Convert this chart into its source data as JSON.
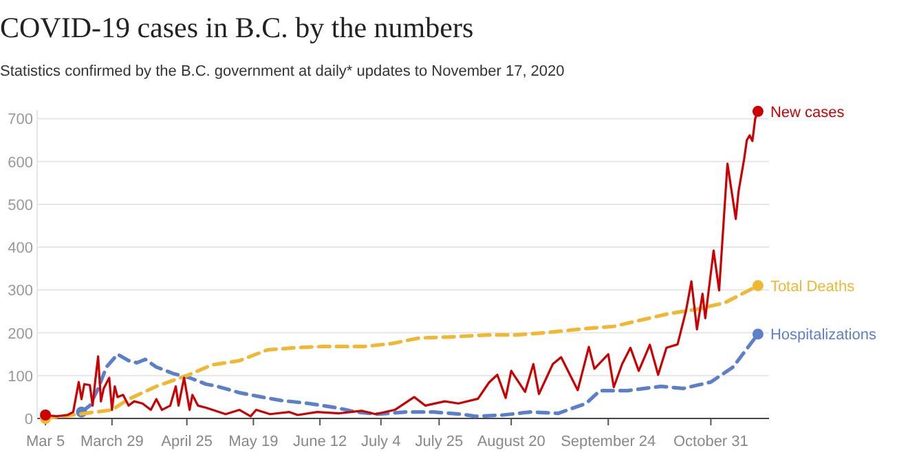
{
  "chart_data": {
    "type": "line",
    "title": "COVID-19 cases in B.C. by the numbers",
    "subtitle": "Statistics confirmed by the B.C. government at daily* updates to November 17, 2020",
    "xlim": [
      "--03-02",
      "--11-21"
    ],
    "xticks": [
      {
        "value": "--03-05",
        "label": "Mar 5"
      },
      {
        "value": "--03-29",
        "label": "March 29"
      },
      {
        "value": "--04-25",
        "label": "April 25"
      },
      {
        "value": "--05-19",
        "label": "May 19"
      },
      {
        "value": "--06-12",
        "label": "June 12"
      },
      {
        "value": "--07-04",
        "label": "July 4"
      },
      {
        "value": "--07-25",
        "label": "July 25"
      },
      {
        "value": "--08-20",
        "label": "August 20"
      },
      {
        "value": "--09-24",
        "label": "September 24"
      },
      {
        "value": "--10-31",
        "label": "October 31"
      }
    ],
    "ylim": [
      0,
      720
    ],
    "yticks": [
      0,
      100,
      200,
      300,
      400,
      500,
      600,
      700
    ],
    "grid": "y",
    "marker": "none",
    "series": [
      {
        "name": "New cases",
        "color": "#cc0000",
        "line_style": "solid",
        "x": [
          "--03-05",
          "--03-09",
          "--03-13",
          "--03-15",
          "--03-17",
          "--03-18",
          "--03-19",
          "--03-21",
          "--03-22",
          "--03-23",
          "--03-24",
          "--03-25",
          "--03-26",
          "--03-28",
          "--03-29",
          "--03-30",
          "--03-31",
          "--04-02",
          "--04-04",
          "--04-06",
          "--04-09",
          "--04-12",
          "--04-14",
          "--04-16",
          "--04-19",
          "--04-21",
          "--04-22",
          "--04-24",
          "--04-26",
          "--04-27",
          "--04-29",
          "--05-02",
          "--05-09",
          "--05-14",
          "--05-18",
          "--05-20",
          "--05-25",
          "--06-01",
          "--06-04",
          "--06-11",
          "--06-19",
          "--06-27",
          "--07-02",
          "--07-09",
          "--07-16",
          "--07-20",
          "--07-27",
          "--08-01",
          "--08-08",
          "--08-12",
          "--08-15",
          "--08-18",
          "--08-20",
          "--08-25",
          "--08-28",
          "--08-30",
          "--09-04",
          "--09-07",
          "--09-13",
          "--09-17",
          "--09-19",
          "--09-24",
          "--09-26",
          "--09-29",
          "--10-02",
          "--10-05",
          "--10-09",
          "--10-12",
          "--10-15",
          "--10-19",
          "--10-22",
          "--10-24",
          "--10-26",
          "--10-28",
          "--10-29",
          "--11-01",
          "--11-03",
          "--11-06",
          "--11-09",
          "--11-10",
          "--11-12",
          "--11-13",
          "--11-14",
          "--11-15",
          "--11-16",
          "--11-17"
        ],
        "values": [
          8,
          5,
          8,
          15,
          85,
          45,
          80,
          78,
          30,
          90,
          145,
          40,
          70,
          95,
          20,
          75,
          50,
          55,
          30,
          40,
          35,
          20,
          45,
          20,
          30,
          75,
          30,
          95,
          20,
          55,
          30,
          25,
          10,
          20,
          5,
          20,
          10,
          15,
          8,
          15,
          12,
          18,
          10,
          20,
          50,
          30,
          40,
          35,
          46,
          84,
          102,
          48,
          111,
          62,
          127,
          57,
          127,
          143,
          66,
          167,
          116,
          150,
          73,
          127,
          165,
          111,
          172,
          102,
          165,
          173,
          250,
          320,
          208,
          291,
          234,
          392,
          299,
          595,
          466,
          530,
          605,
          650,
          661,
          648,
          700,
          717
        ]
      },
      {
        "name": "Total Deaths",
        "color": "#f0b732",
        "line_style": "dashed",
        "x": [
          "--03-05",
          "--03-17",
          "--03-29",
          "--04-04",
          "--04-14",
          "--04-25",
          "--05-04",
          "--05-14",
          "--05-24",
          "--06-03",
          "--06-13",
          "--06-28",
          "--07-08",
          "--07-18",
          "--07-28",
          "--08-12",
          "--08-22",
          "--09-01",
          "--09-16",
          "--09-26",
          "--10-06",
          "--10-16",
          "--10-26",
          "--11-05",
          "--11-17"
        ],
        "values": [
          0,
          10,
          20,
          45,
          75,
          100,
          125,
          135,
          160,
          165,
          168,
          168,
          175,
          188,
          190,
          195,
          195,
          200,
          210,
          215,
          230,
          245,
          255,
          270,
          310
        ]
      },
      {
        "name": "Hospitalizations",
        "color": "#5b7fc8",
        "line_style": "dashed",
        "x": [
          "--03-18",
          "--03-21",
          "--03-24",
          "--03-27",
          "--03-31",
          "--04-04",
          "--04-07",
          "--04-10",
          "--04-14",
          "--04-20",
          "--04-26",
          "--05-02",
          "--05-06",
          "--05-14",
          "--05-22",
          "--05-29",
          "--06-08",
          "--06-18",
          "--06-25",
          "--07-03",
          "--07-13",
          "--07-23",
          "--08-02",
          "--08-07",
          "--08-17",
          "--08-27",
          "--09-06",
          "--09-16",
          "--09-21",
          "--10-01",
          "--10-13",
          "--10-21",
          "--10-31",
          "--11-08",
          "--11-17"
        ],
        "values": [
          15,
          30,
          70,
          120,
          150,
          135,
          130,
          138,
          120,
          105,
          95,
          80,
          75,
          60,
          50,
          42,
          35,
          25,
          15,
          10,
          15,
          15,
          10,
          5,
          8,
          15,
          12,
          35,
          65,
          65,
          75,
          70,
          85,
          120,
          197
        ]
      }
    ]
  }
}
